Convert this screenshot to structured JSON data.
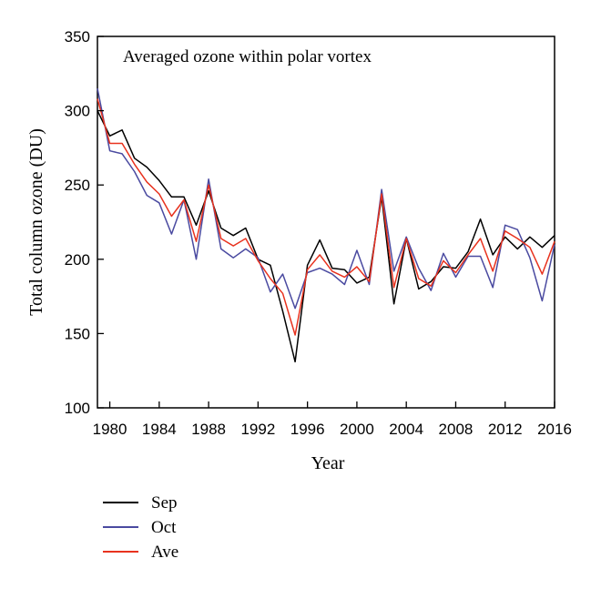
{
  "chart_data": {
    "type": "line",
    "title": "Averaged ozone within polar vortex",
    "xlabel": "Year",
    "ylabel": "Total column ozone (DU)",
    "xlim": [
      1979,
      2016
    ],
    "ylim": [
      100,
      350
    ],
    "xticks": [
      1980,
      1984,
      1988,
      1992,
      1996,
      2000,
      2004,
      2008,
      2012,
      2016
    ],
    "yticks": [
      100,
      150,
      200,
      250,
      300,
      350
    ],
    "grid": false,
    "legend_position": "bottom-left, below plot",
    "x": [
      1979,
      1980,
      1981,
      1982,
      1983,
      1984,
      1985,
      1986,
      1987,
      1988,
      1989,
      1990,
      1991,
      1992,
      1993,
      1994,
      1995,
      1996,
      1997,
      1998,
      1999,
      2000,
      2001,
      2002,
      2003,
      2004,
      2005,
      2006,
      2007,
      2008,
      2009,
      2010,
      2011,
      2012,
      2013,
      2014,
      2015,
      2016
    ],
    "series": [
      {
        "name": "Sep",
        "color": "#000000",
        "values": [
          300,
          283,
          287,
          268,
          262,
          253,
          242,
          242,
          223,
          246,
          221,
          216,
          221,
          200,
          196,
          165,
          131,
          196,
          213,
          194,
          193,
          184,
          188,
          242,
          170,
          214,
          180,
          185,
          195,
          194,
          205,
          227,
          203,
          215,
          207,
          215,
          208,
          216
        ]
      },
      {
        "name": "Oct",
        "color": "#4a4aa0",
        "values": [
          315,
          273,
          271,
          259,
          243,
          238,
          217,
          240,
          200,
          254,
          207,
          201,
          207,
          201,
          178,
          190,
          167,
          191,
          194,
          190,
          183,
          206,
          183,
          247,
          192,
          215,
          194,
          179,
          204,
          188,
          202,
          202,
          181,
          223,
          220,
          201,
          172,
          210
        ]
      },
      {
        "name": "Ave",
        "color": "#e8321e",
        "values": [
          308,
          278,
          278,
          264,
          252,
          244,
          229,
          240,
          212,
          250,
          214,
          209,
          214,
          199,
          187,
          177,
          149,
          193,
          203,
          192,
          188,
          195,
          185,
          244,
          181,
          214,
          187,
          182,
          199,
          191,
          203,
          214,
          192,
          219,
          214,
          208,
          190,
          212
        ]
      }
    ]
  }
}
